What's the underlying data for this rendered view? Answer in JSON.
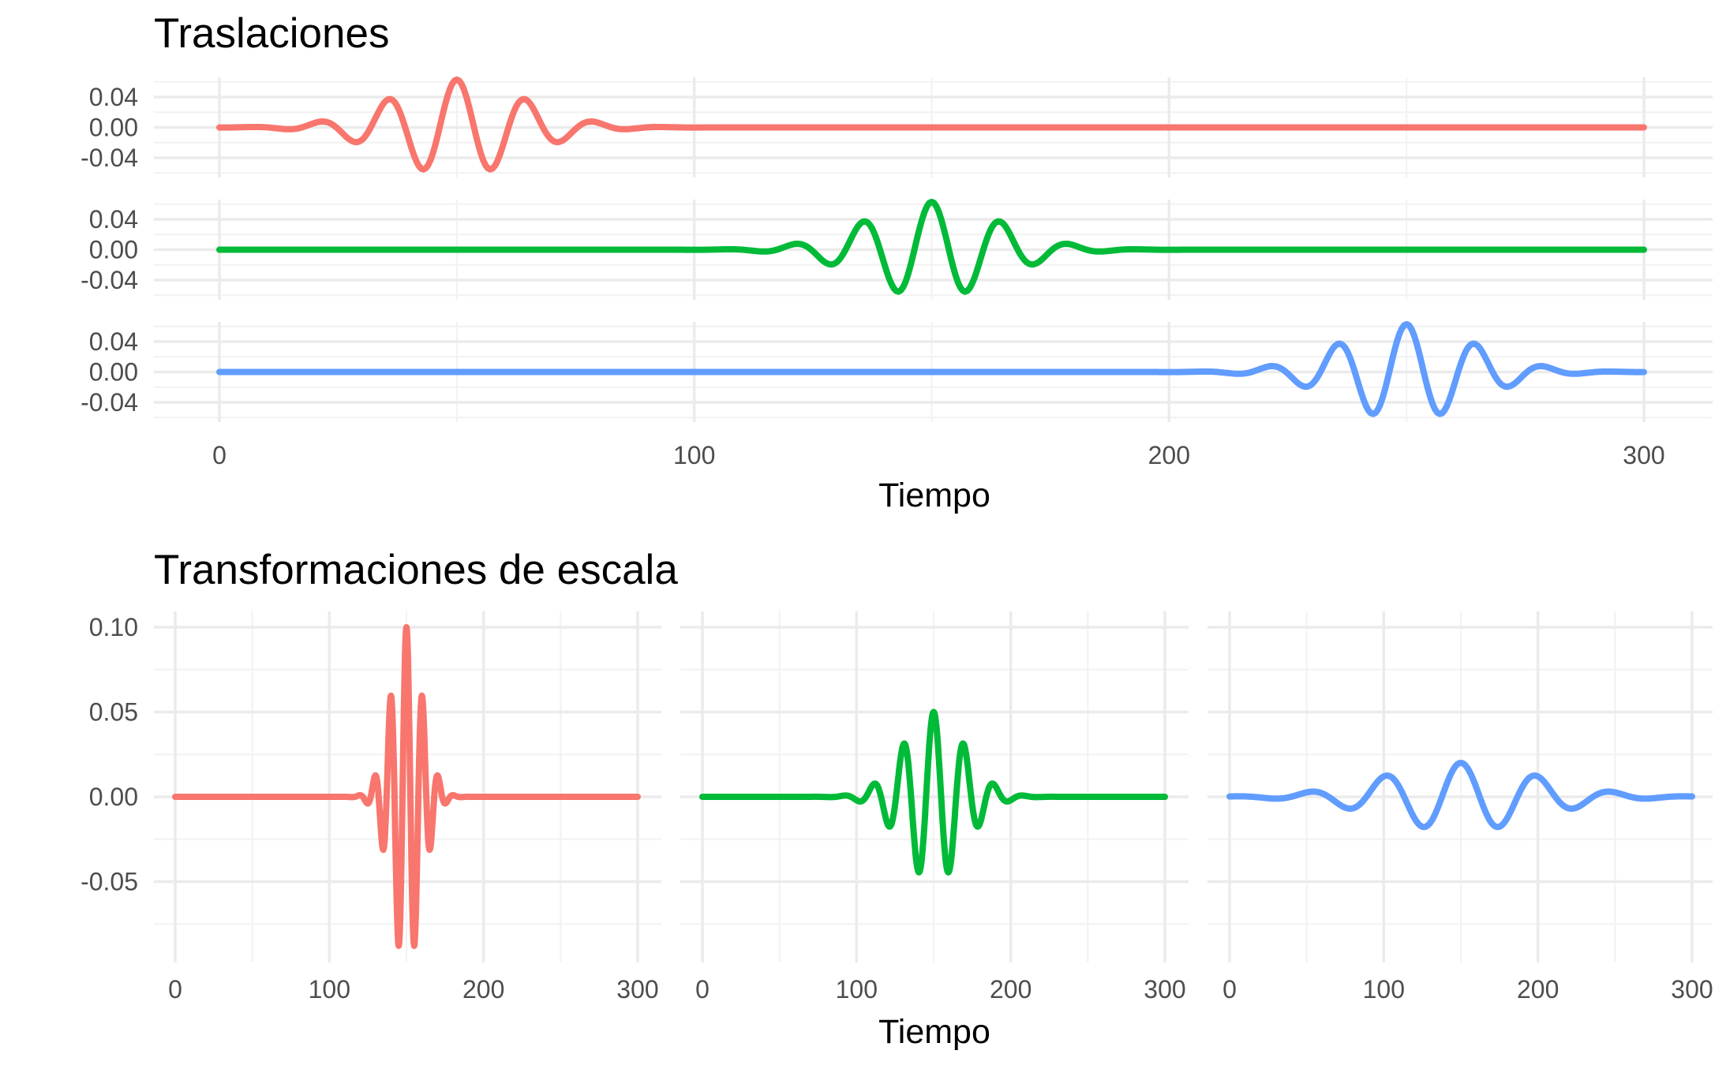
{
  "chart_data": [
    {
      "type": "line",
      "title": "Traslaciones",
      "xlabel": "Tiempo",
      "ylabel": "",
      "xlim": [
        0,
        300
      ],
      "x_ticks": [
        "0",
        "100",
        "200",
        "300"
      ],
      "grid": true,
      "legend": "none",
      "facets": "stacked rows",
      "panels": [
        {
          "color": "#F8766D",
          "ylim": [
            -0.06,
            0.06
          ],
          "y_ticks": [
            "0.04",
            "0.00",
            "-0.04"
          ],
          "center": 50,
          "period": 14.5,
          "amplitude": 0.063,
          "envelope_width": 14
        },
        {
          "color": "#00BA38",
          "ylim": [
            -0.06,
            0.06
          ],
          "y_ticks": [
            "0.04",
            "0.00",
            "-0.04"
          ],
          "center": 150,
          "period": 14.5,
          "amplitude": 0.063,
          "envelope_width": 14
        },
        {
          "color": "#619CFF",
          "ylim": [
            -0.06,
            0.06
          ],
          "y_ticks": [
            "0.04",
            "0.00",
            "-0.04"
          ],
          "center": 250,
          "period": 14.5,
          "amplitude": 0.063,
          "envelope_width": 14
        }
      ]
    },
    {
      "type": "line",
      "title": "Transformaciones de escala",
      "xlabel": "Tiempo",
      "ylabel": "",
      "xlim": [
        0,
        300
      ],
      "ylim": [
        -0.1,
        0.11
      ],
      "x_ticks": [
        "0",
        "100",
        "200",
        "300"
      ],
      "y_ticks": [
        "0.10",
        "0.05",
        "0.00",
        "-0.05"
      ],
      "grid": true,
      "legend": "none",
      "facets": "side-by-side columns",
      "panels": [
        {
          "color": "#F8766D",
          "center": 150,
          "period": 10.3,
          "amplitude": 0.1,
          "envelope_width": 10
        },
        {
          "color": "#00BA38",
          "center": 150,
          "period": 19.5,
          "amplitude": 0.05,
          "envelope_width": 20
        },
        {
          "color": "#619CFF",
          "center": 150,
          "period": 49,
          "amplitude": 0.02,
          "envelope_width": 50
        }
      ]
    }
  ]
}
